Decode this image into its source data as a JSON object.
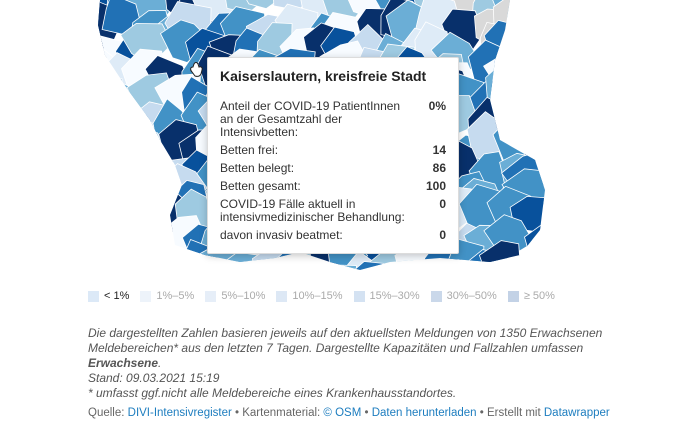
{
  "tooltip": {
    "title": "Kaiserslautern, kreisfreie Stadt",
    "rows": [
      {
        "label": "Anteil der COVID-19 PatientInnen an der Gesamtzahl der Intensivbetten:",
        "value": "0%"
      },
      {
        "label": "Betten frei:",
        "value": "14"
      },
      {
        "label": "Betten belegt:",
        "value": "86"
      },
      {
        "label": "Betten gesamt:",
        "value": "100"
      },
      {
        "label": "COVID-19 Fälle aktuell in intensivmedizinischer Behandlung:",
        "value": "0"
      },
      {
        "label": "davon invasiv beatmet:",
        "value": "0"
      }
    ]
  },
  "legend": {
    "items": [
      {
        "label": "< 1%",
        "color": "#dce9f7",
        "active": true
      },
      {
        "label": "1%–5%",
        "color": "#edf3fa",
        "active": false
      },
      {
        "label": "5%–10%",
        "color": "#e6eef8",
        "active": false
      },
      {
        "label": "10%–15%",
        "color": "#dde8f5",
        "active": false
      },
      {
        "label": "15%–30%",
        "color": "#d4e2f2",
        "active": false
      },
      {
        "label": "30%–50%",
        "color": "#cad8ea",
        "active": false
      },
      {
        "label": "≥ 50%",
        "color": "#c3d2e6",
        "active": false
      }
    ]
  },
  "notes": {
    "line1_prefix": "Die dargestellten Zahlen basieren jeweils auf den aktuellsten Meldungen von 1350 Erwachsenen Meldebereichen* aus den letzten 7 Tagen. Dargestellte Kapazitäten und Fallzahlen umfassen ",
    "line1_bold": "Erwachsene",
    "line1_suffix": ".",
    "stand": "Stand: 09.03.2021 15:19",
    "footnote": "* umfasst ggf.nicht alle Meldebereiche eines Krankenhausstandortes."
  },
  "source": {
    "prefix": "Quelle: ",
    "divi": "DIVI-Intensivregister",
    "sep1": " • Kartenmaterial: ",
    "osm": "© OSM",
    "sep2": " • ",
    "download": "Daten herunterladen",
    "sep3": " • Erstellt mit ",
    "datawrapper": "Datawrapper"
  },
  "map": {
    "palette": [
      "#08306b",
      "#08519c",
      "#2171b5",
      "#4292c6",
      "#6baed6",
      "#9ecae1",
      "#c6dbef",
      "#deebf7",
      "#f7fbff"
    ],
    "no_data_color": "#d9d9d9"
  }
}
